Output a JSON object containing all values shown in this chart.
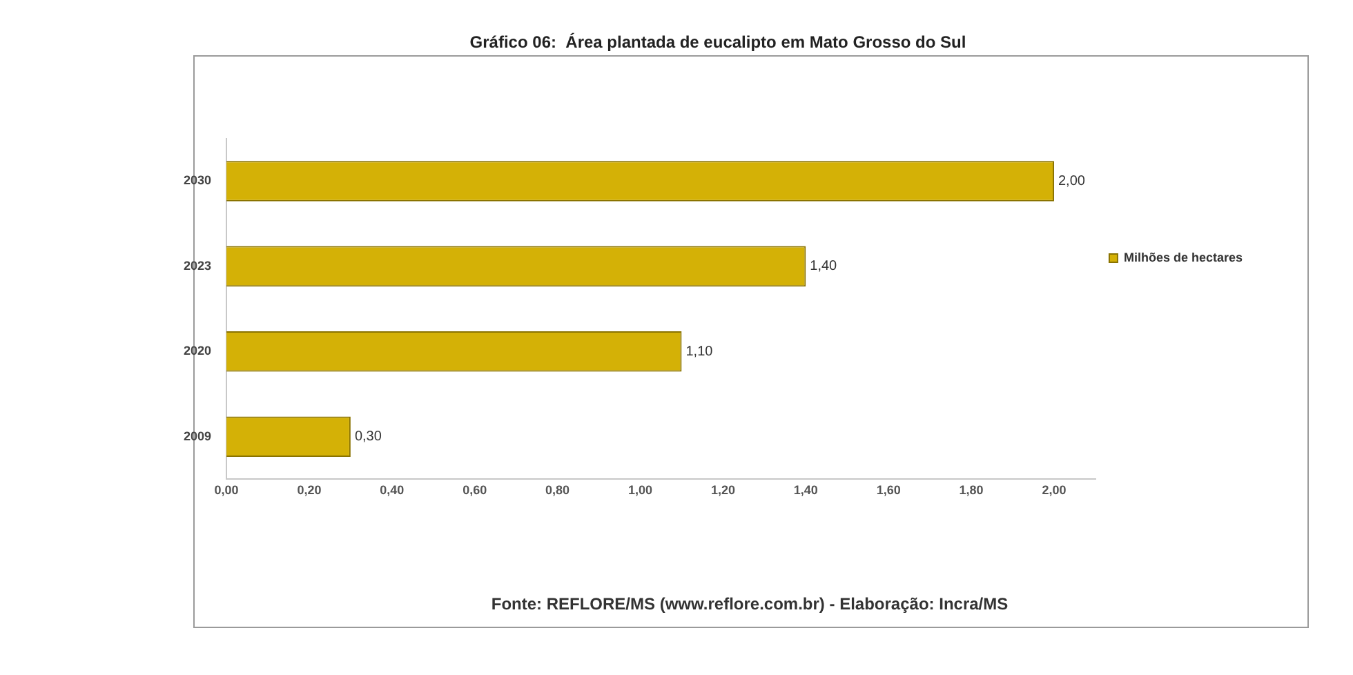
{
  "chart_data": {
    "type": "bar",
    "orientation": "horizontal",
    "title": "Gráfico 06:  Área plantada de eucalipto em Mato Grosso do Sul",
    "categories": [
      "2030",
      "2023",
      "2020",
      "2009"
    ],
    "series": [
      {
        "name": "Milhões de hectares",
        "color": "#d4b106",
        "values": [
          2.0,
          1.4,
          1.1,
          0.3
        ],
        "value_labels": [
          "2,00",
          "1,40",
          "1,10",
          "0,30"
        ]
      }
    ],
    "xlim": [
      0,
      2.1
    ],
    "xticks": [
      {
        "value": 0,
        "label": "0,00"
      },
      {
        "value": 0.2,
        "label": "0,20"
      },
      {
        "value": 0.4,
        "label": "0,40"
      },
      {
        "value": 0.6,
        "label": "0,60"
      },
      {
        "value": 0.8,
        "label": "0,80"
      },
      {
        "value": 1.0,
        "label": "1,00"
      },
      {
        "value": 1.2,
        "label": "1,20"
      },
      {
        "value": 1.4,
        "label": "1,40"
      },
      {
        "value": 1.6,
        "label": "1,60"
      },
      {
        "value": 1.8,
        "label": "1,80"
      },
      {
        "value": 2.0,
        "label": "2,00"
      }
    ],
    "legend": "right",
    "annotations": [
      "Fonte: REFLORE/MS (www.reflore.com.br) - Elaboração: Incra/MS"
    ]
  }
}
